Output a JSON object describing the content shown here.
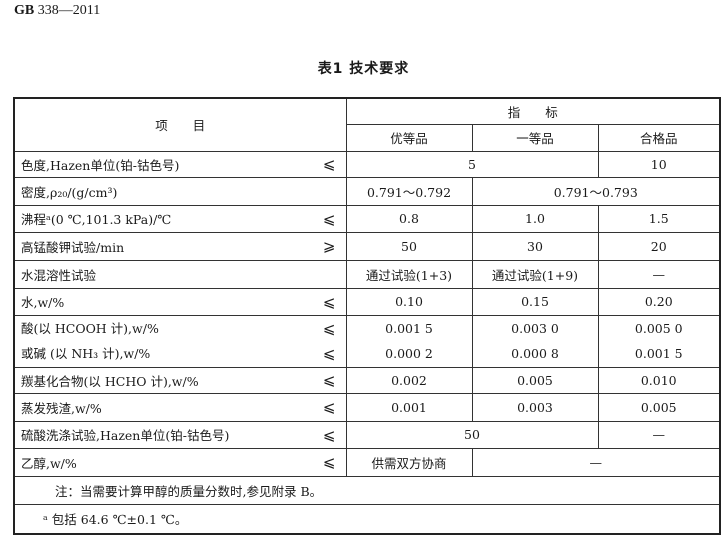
{
  "header": {
    "standard_prefix": "GB",
    "standard_number": "338—2011"
  },
  "table_title": "表1  技术要求",
  "columns": {
    "item": "项　　目",
    "indicator": "指　　标",
    "grades": [
      "优等品",
      "一等品",
      "合格品"
    ]
  },
  "rows": [
    {
      "label": "色度,Hazen单位(铂-钴色号)",
      "sym": "⩽",
      "merged12": "5",
      "v3": "10"
    },
    {
      "label": "密度,ρ₂₀/(g/cm³)",
      "v1": "0.791～0.792",
      "merged23": "0.791～0.793"
    },
    {
      "label": "沸程ᵃ(0 ℃,101.3 kPa)/℃",
      "sym": "⩽",
      "v1": "0.8",
      "v2": "1.0",
      "v3": "1.5"
    },
    {
      "label": "高锰酸钾试验/min",
      "sym": "⩾",
      "v1": "50",
      "v2": "30",
      "v3": "20"
    },
    {
      "label": "水混溶性试验",
      "v1": "通过试验(1+3)",
      "v2": "通过试验(1+9)",
      "v3": "—"
    },
    {
      "label": "水,w/%",
      "sym": "⩽",
      "v1": "0.10",
      "v2": "0.15",
      "v3": "0.20"
    },
    {
      "label": "酸(以 HCOOH 计),w/%",
      "sym": "⩽",
      "v1": "0.001 5",
      "v2": "0.003 0",
      "v3": "0.005 0",
      "label_b": "或碱 (以 NH₃ 计),w/%",
      "sym_b": "⩽",
      "v1_b": "0.000 2",
      "v2_b": "0.000 8",
      "v3_b": "0.001 5"
    },
    {
      "label": "羰基化合物(以 HCHO 计),w/%",
      "sym": "⩽",
      "v1": "0.002",
      "v2": "0.005",
      "v3": "0.010"
    },
    {
      "label": "蒸发残渣,w/%",
      "sym": "⩽",
      "v1": "0.001",
      "v2": "0.003",
      "v3": "0.005"
    },
    {
      "label": "硫酸洗涤试验,Hazen单位(铂-钴色号)",
      "sym": "⩽",
      "merged12": "50",
      "v3": "—"
    },
    {
      "label": "乙醇,w/%",
      "sym": "⩽",
      "v1": "供需双方协商",
      "merged23": "—"
    }
  ],
  "note": "注：当需要计算甲醇的质量分数时,参见附录 B。",
  "footnote": "ᵃ 包括 64.6 ℃±0.1 ℃。"
}
